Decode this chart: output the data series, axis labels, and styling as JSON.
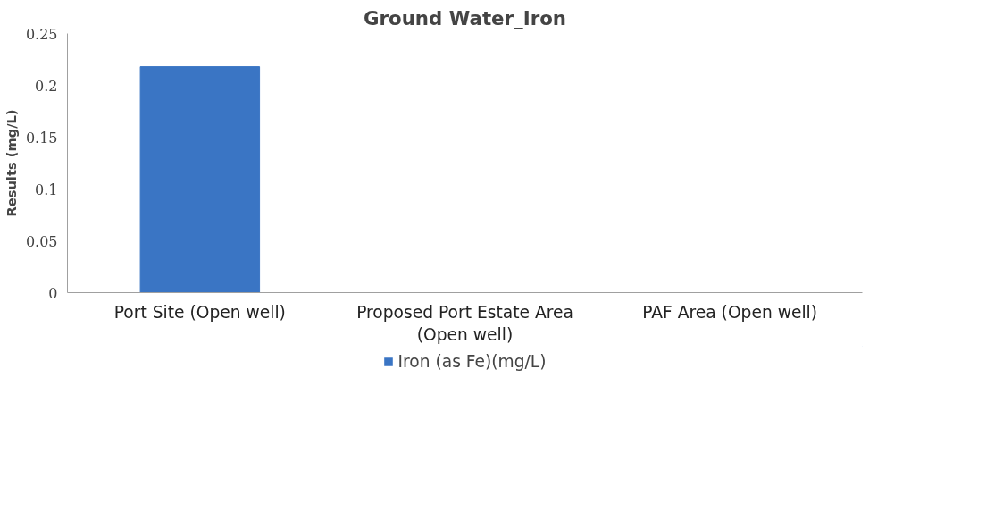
{
  "chart_data": {
    "type": "bar",
    "title": "Ground Water_Iron",
    "ylabel": "Results (mg/L)",
    "categories": [
      "Port Site (Open well)",
      "Proposed Port Estate Area (Open well)",
      "PAF Area (Open well)"
    ],
    "series": [
      {
        "name": "Iron (as Fe)(mg/L)",
        "color": "#3a75c4",
        "values": [
          0.218,
          0,
          0
        ]
      }
    ],
    "ylim": [
      0,
      0.25
    ],
    "yticks": [
      0,
      0.05,
      0.1,
      0.15,
      0.2,
      0.25
    ],
    "grid": false,
    "legend": "bottom"
  }
}
